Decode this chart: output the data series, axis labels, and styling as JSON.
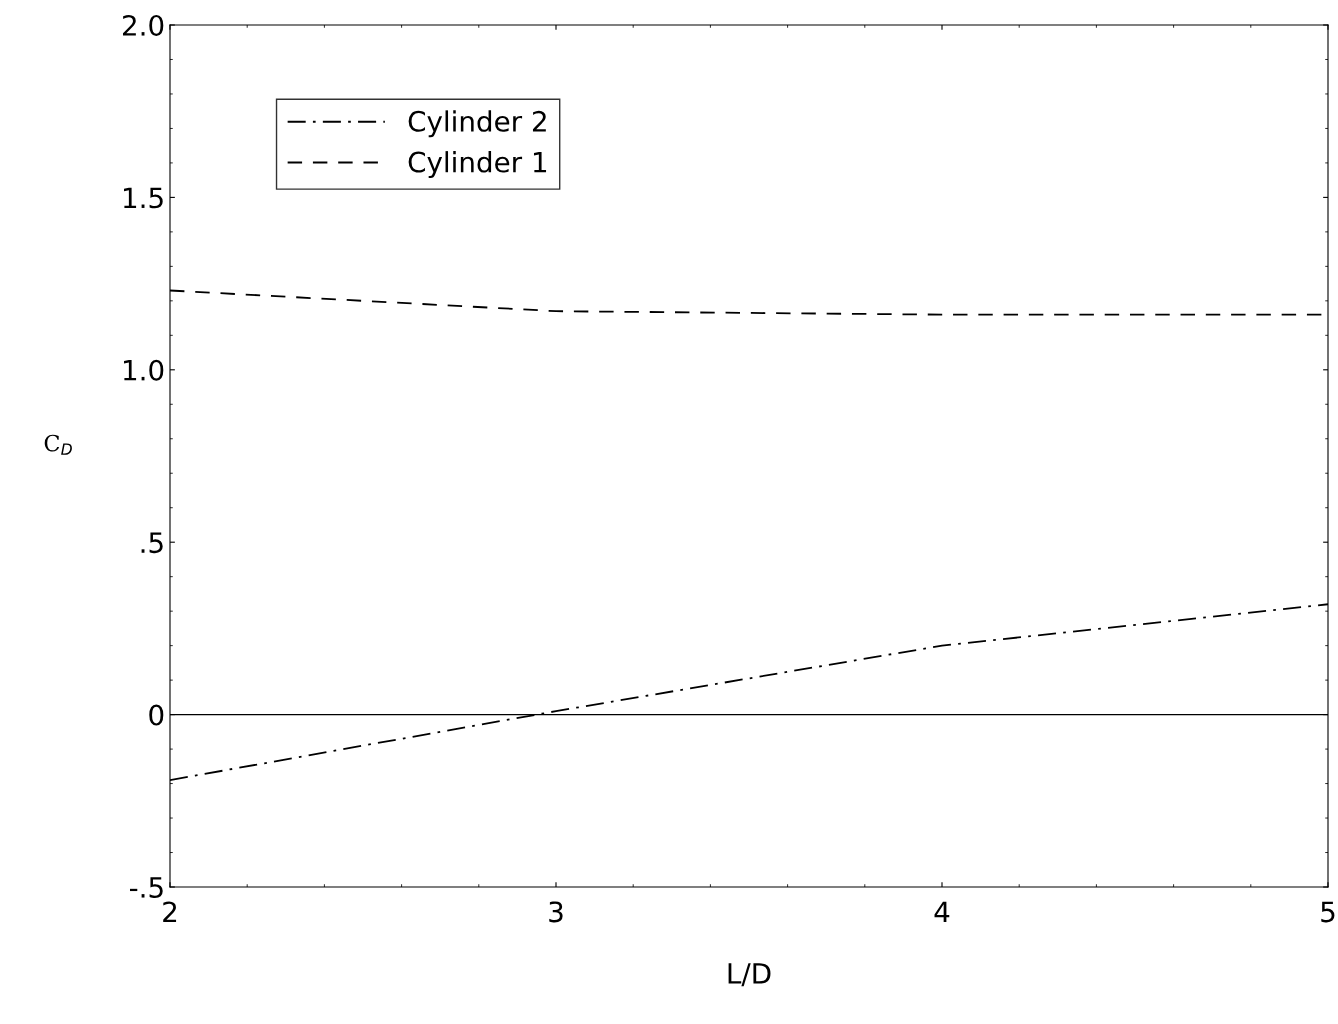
{
  "chart_data": {
    "type": "line",
    "xlabel": "L/D",
    "ylabel": "C$_{D}$",
    "x": [
      2,
      3,
      4,
      5
    ],
    "series": [
      {
        "name": "Cylinder 2",
        "color": "#000000",
        "line_style": "dashdot",
        "values": [
          -0.19,
          0.01,
          0.2,
          0.32
        ]
      },
      {
        "name": "Cylinder 1",
        "color": "#000000",
        "line_style": "dashed",
        "values": [
          1.23,
          1.17,
          1.16,
          1.16
        ]
      }
    ],
    "xlim": [
      2,
      5
    ],
    "xticks": [
      2,
      3,
      4,
      5
    ],
    "ylim": [
      -0.5,
      2.0
    ],
    "yticks": [
      {
        "value": -0.5,
        "label": "-.5"
      },
      0,
      {
        "value": 0.5,
        "label": ".5"
      },
      {
        "value": 1.0,
        "label": "1.0"
      },
      {
        "value": 1.5,
        "label": "1.5"
      },
      {
        "value": 2.0,
        "label": "2.0"
      }
    ],
    "ref_lines": [
      {
        "axis": "y",
        "value": 0,
        "color": "#000000",
        "line_style": "solid"
      }
    ],
    "legend": "top left",
    "grid": false,
    "marker": "none"
  }
}
